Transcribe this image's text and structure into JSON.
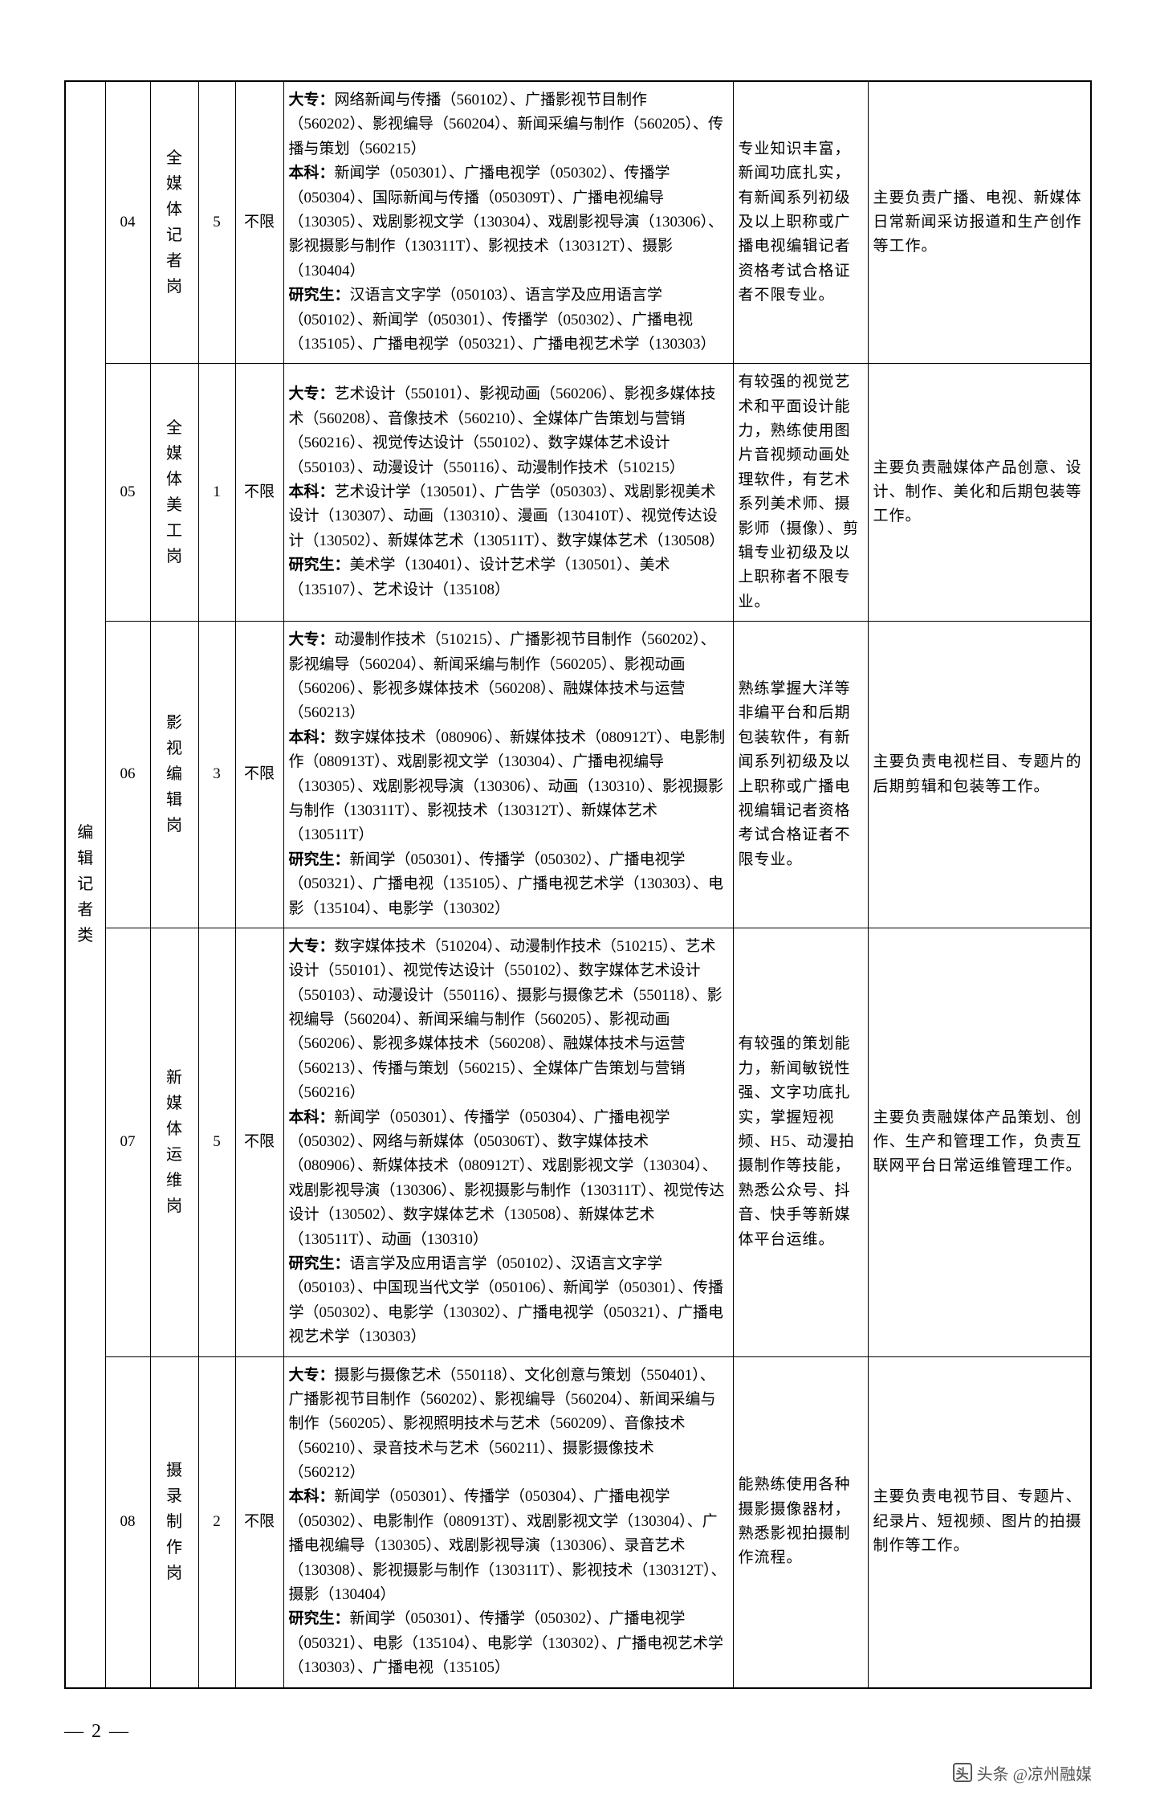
{
  "category": "编辑记者类",
  "rows": [
    {
      "num": "04",
      "post": "全媒体记者岗",
      "count": "5",
      "limit": "不限",
      "major": "<b>大专：</b>网络新闻与传播（560102）、广播影视节目制作（560202）、影视编导（560204）、新闻采编与制作（560205）、传播与策划（560215）<br><b>本科：</b>新闻学（050301）、广播电视学（050302）、传播学（050304）、国际新闻与传播（050309T）、广播电视编导（130305）、戏剧影视文学（130304）、戏剧影视导演（130306）、影视摄影与制作（130311T）、影视技术（130312T）、摄影（130404）<br><b>研究生：</b>汉语言文字学（050103）、语言学及应用语言学（050102）、新闻学（050301）、传播学（050302）、广播电视（135105）、广播电视学（050321）、广播电视艺术学（130303）",
      "req": "专业知识丰富，新闻功底扎实，有新闻系列初级及以上职称或广播电视编辑记者资格考试合格证者不限专业。",
      "duty": "主要负责广播、电视、新媒体日常新闻采访报道和生产创作等工作。"
    },
    {
      "num": "05",
      "post": "全媒体美工岗",
      "count": "1",
      "limit": "不限",
      "major": "<b>大专：</b>艺术设计（550101）、影视动画（560206）、影视多媒体技术（560208）、音像技术（560210）、全媒体广告策划与营销（560216）、视觉传达设计（550102）、数字媒体艺术设计（550103）、动漫设计（550116）、动漫制作技术（510215）<br><b>本科：</b>艺术设计学（130501）、广告学（050303）、戏剧影视美术设计（130307）、动画（130310）、漫画（130410T）、视觉传达设计（130502）、新媒体艺术（130511T）、数字媒体艺术（130508）<br><b>研究生：</b>美术学（130401）、设计艺术学（130501）、美术（135107）、艺术设计（135108）",
      "req": "有较强的视觉艺术和平面设计能力，熟练使用图片音视频动画处理软件，有艺术系列美术师、摄影师（摄像）、剪辑专业初级及以上职称者不限专业。",
      "duty": "主要负责融媒体产品创意、设计、制作、美化和后期包装等工作。"
    },
    {
      "num": "06",
      "post": "影视编辑岗",
      "count": "3",
      "limit": "不限",
      "major": "<b>大专：</b>动漫制作技术（510215）、广播影视节目制作（560202）、影视编导（560204）、新闻采编与制作（560205）、影视动画（560206）、影视多媒体技术（560208）、融媒体技术与运营（560213）<br><b>本科：</b>数字媒体技术（080906）、新媒体技术（080912T）、电影制作（080913T）、戏剧影视文学（130304）、广播电视编导（130305）、戏剧影视导演（130306）、动画（130310）、影视摄影与制作（130311T）、影视技术（130312T）、新媒体艺术（130511T）<br><b>研究生：</b>新闻学（050301）、传播学（050302）、广播电视学（050321）、广播电视（135105）、广播电视艺术学（130303）、电影（135104）、电影学（130302）",
      "req": "熟练掌握大洋等非编平台和后期包装软件，有新闻系列初级及以上职称或广播电视编辑记者资格考试合格证者不限专业。",
      "duty": "主要负责电视栏目、专题片的后期剪辑和包装等工作。"
    },
    {
      "num": "07",
      "post": "新媒体运维岗",
      "count": "5",
      "limit": "不限",
      "major": "<b>大专：</b>数字媒体技术（510204）、动漫制作技术（510215）、艺术设计（550101）、视觉传达设计（550102）、数字媒体艺术设计（550103）、动漫设计（550116）、摄影与摄像艺术（550118）、影视编导（560204）、新闻采编与制作（560205）、影视动画（560206）、影视多媒体技术（560208）、融媒体技术与运营（560213）、传播与策划（560215）、全媒体广告策划与营销（560216）<br><b>本科：</b>新闻学（050301）、传播学（050304）、广播电视学（050302）、网络与新媒体（050306T）、数字媒体技术（080906）、新媒体技术（080912T）、戏剧影视文学（130304）、戏剧影视导演（130306）、影视摄影与制作（130311T）、视觉传达设计（130502）、数字媒体艺术（130508）、新媒体艺术（130511T）、动画（130310）<br><b>研究生：</b>语言学及应用语言学（050102）、汉语言文字学（050103）、中国现当代文学（050106）、新闻学（050301）、传播学（050302）、电影学（130302）、广播电视学（050321）、广播电视艺术学（130303）",
      "req": "有较强的策划能力，新闻敏锐性强、文字功底扎实，掌握短视频、H5、动漫拍摄制作等技能，熟悉公众号、抖音、快手等新媒体平台运维。",
      "duty": "主要负责融媒体产品策划、创作、生产和管理工作，负责互联网平台日常运维管理工作。"
    },
    {
      "num": "08",
      "post": "摄录制作岗",
      "count": "2",
      "limit": "不限",
      "major": "<b>大专：</b>摄影与摄像艺术（550118）、文化创意与策划（550401）、广播影视节目制作（560202）、影视编导（560204）、新闻采编与制作（560205）、影视照明技术与艺术（560209）、音像技术（560210）、录音技术与艺术（560211）、摄影摄像技术（560212）<br><b>本科：</b>新闻学（050301）、传播学（050304）、广播电视学（050302）、电影制作（080913T）、戏剧影视文学（130304）、广播电视编导（130305）、戏剧影视导演（130306）、录音艺术（130308）、影视摄影与制作（130311T）、影视技术（130312T）、摄影（130404）<br><b>研究生：</b>新闻学（050301）、传播学（050302）、广播电视学（050321）、电影（135104）、电影学（130302）、广播电视艺术学（130303）、广播电视（135105）",
      "req": "能熟练使用各种摄影摄像器材，熟悉影视拍摄制作流程。",
      "duty": "主要负责电视节目、专题片、纪录片、短视频、图片的拍摄制作等工作。"
    }
  ],
  "page_number": "— 2 —",
  "watermark": "头条 @凉州融媒"
}
